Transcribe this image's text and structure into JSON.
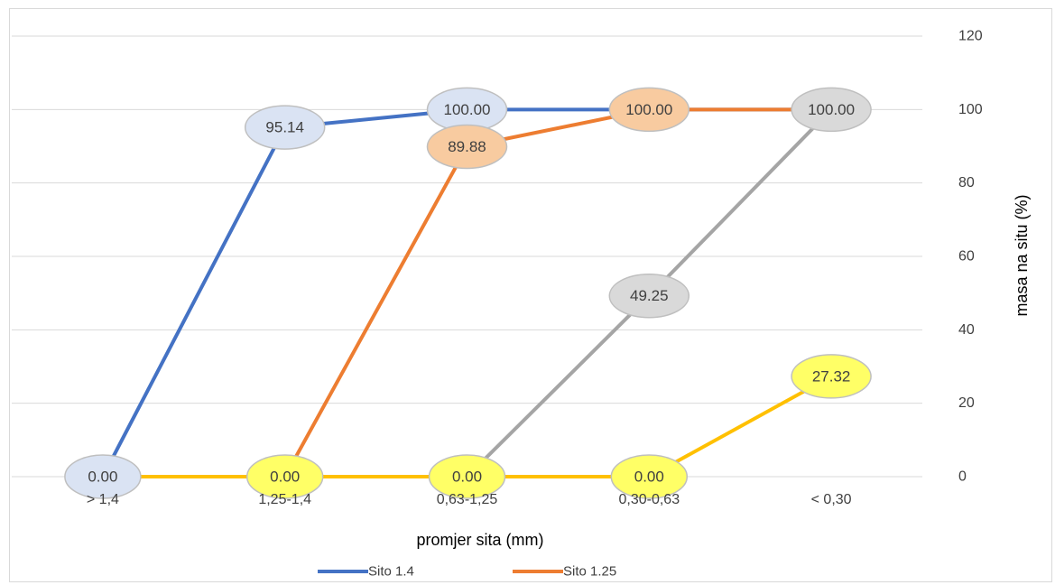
{
  "chart_data": {
    "type": "line",
    "categories": [
      "> 1,4",
      "1,25-1,4",
      "0,63-1,25",
      "0,30-0,63",
      "< 0,30"
    ],
    "xlabel": "promjer sita (mm)",
    "ylabel": "masa na situ (%)",
    "ylim": [
      0,
      120
    ],
    "yticks": [
      "0",
      "20",
      "40",
      "60",
      "80",
      "100",
      "120"
    ],
    "grid": "horizontal",
    "y_axis_position": "right",
    "legend_position": "bottom",
    "series": [
      {
        "name": "Sito 1.4",
        "color": "#4472c4",
        "label_fill": "#dae3f3",
        "values": [
          0,
          95.14,
          100,
          100,
          100
        ],
        "labels": [
          "0.00",
          "95.14",
          "100.00",
          null,
          null
        ]
      },
      {
        "name": "Sito 1.25",
        "color": "#ed7d31",
        "label_fill": "#f8cba0",
        "values": [
          null,
          0,
          89.88,
          100,
          100
        ],
        "labels": [
          null,
          null,
          "89.88",
          "100.00",
          null
        ]
      },
      {
        "color": "#a5a5a5",
        "label_fill": "#d9d9d9",
        "values": [
          null,
          null,
          0,
          49.25,
          100
        ],
        "labels": [
          null,
          null,
          null,
          "49.25",
          "100.00"
        ]
      },
      {
        "color": "#ffc000",
        "label_fill": "#ffff66",
        "values": [
          0,
          0,
          0,
          0,
          27.32
        ],
        "labels": [
          null,
          "0.00",
          "0.00",
          "0.00",
          "27.32"
        ]
      }
    ]
  }
}
